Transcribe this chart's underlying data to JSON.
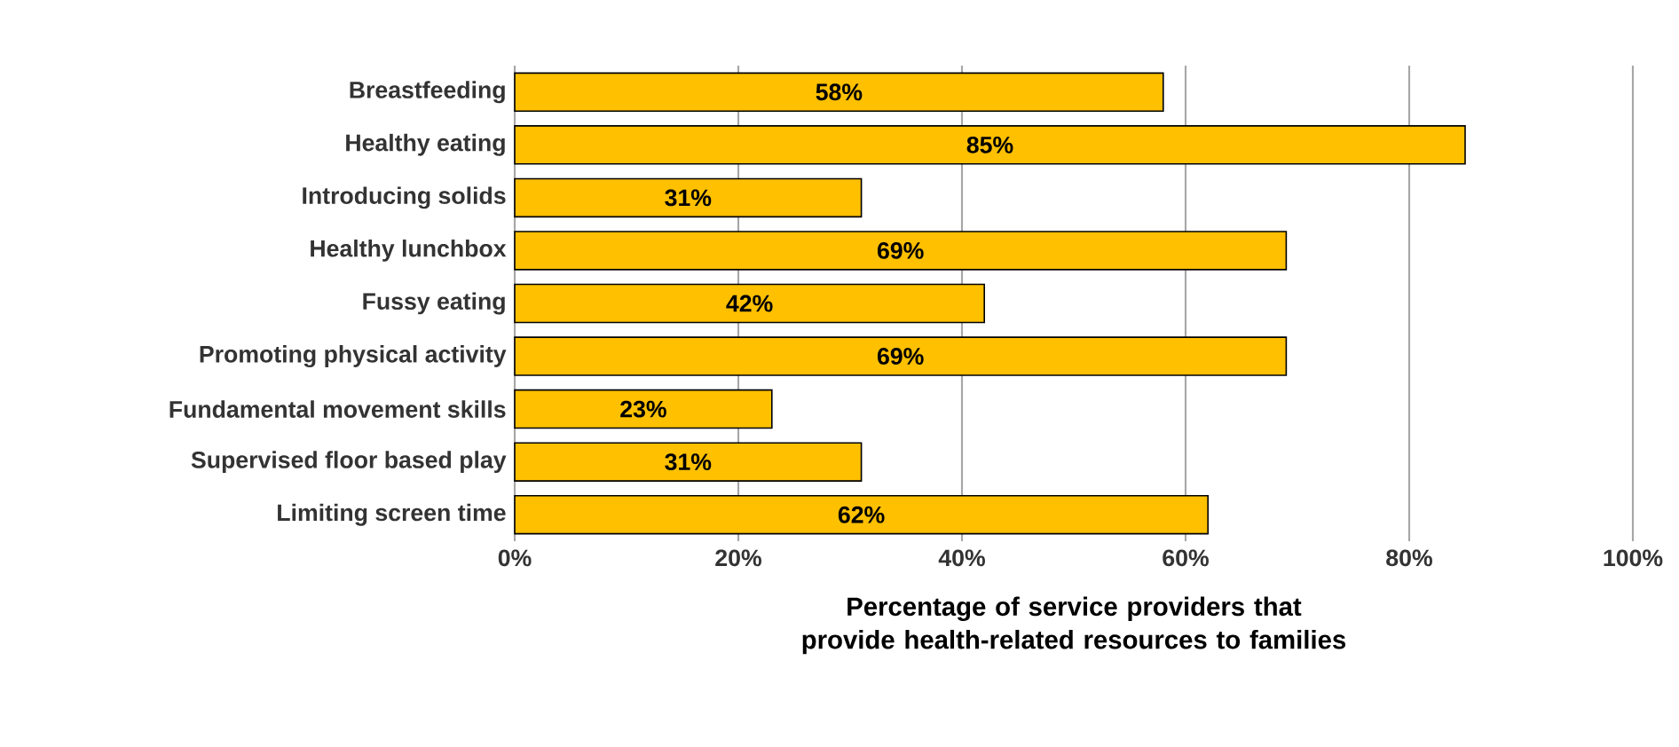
{
  "chart_data": {
    "type": "bar",
    "orientation": "horizontal",
    "categories": [
      "Breastfeeding",
      "Healthy eating",
      "Introducing solids",
      "Healthy lunchbox",
      "Fussy eating",
      "Promoting physical activity",
      "Fundamental movement skills",
      "Supervised floor based play",
      "Limiting screen time"
    ],
    "values": [
      58,
      85,
      31,
      69,
      42,
      69,
      23,
      31,
      62
    ],
    "value_labels": [
      "58%",
      "85%",
      "31%",
      "69%",
      "42%",
      "69%",
      "23%",
      "31%",
      "62%"
    ],
    "color": "#ffc000",
    "xlim": [
      0,
      100
    ],
    "xticks": [
      {
        "value": 0,
        "label": "0%"
      },
      {
        "value": 20,
        "label": "20%"
      },
      {
        "value": 40,
        "label": "40%"
      },
      {
        "value": 60,
        "label": "60%"
      },
      {
        "value": 80,
        "label": "80%"
      },
      {
        "value": 100,
        "label": "100%"
      }
    ],
    "xlabel": "Percentage of service providers that provide health-related resources to families",
    "grid": "x"
  }
}
